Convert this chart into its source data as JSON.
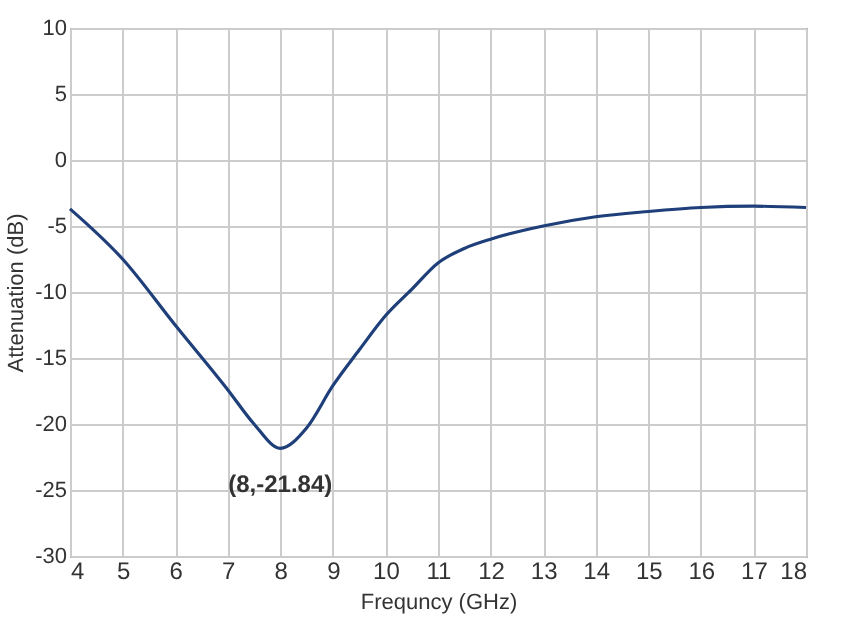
{
  "chart_data": {
    "type": "line",
    "xlabel": "Frequncy  (GHz)",
    "ylabel": "Attenuation  (dB)",
    "x": [
      4,
      5,
      6,
      7,
      7.5,
      8,
      8.5,
      9,
      9.5,
      10,
      10.5,
      11,
      11.5,
      12,
      13,
      14,
      15,
      16,
      17,
      18
    ],
    "series": [
      {
        "color": "#1f3f7a",
        "values": [
          -3.7,
          -7.5,
          -12.5,
          -17.4,
          -20,
          -21.84,
          -20.3,
          -17.1,
          -14.4,
          -11.8,
          -9.8,
          -7.8,
          -6.7,
          -6,
          -5,
          -4.3,
          -3.9,
          -3.6,
          -3.5,
          -3.6
        ]
      }
    ],
    "xlim": [
      4,
      18
    ],
    "xticks": [
      4,
      5,
      6,
      7,
      8,
      9,
      10,
      11,
      12,
      13,
      14,
      15,
      16,
      17,
      18
    ],
    "ylim": [
      -30,
      10
    ],
    "yticks": [
      -30,
      -25,
      -20,
      -15,
      -10,
      -5,
      0,
      5,
      10
    ],
    "grid": true,
    "marker": "none",
    "line_style": "solid",
    "annotations": [
      {
        "text": "(8,-21.84)",
        "x": 8,
        "y": -21.84
      }
    ]
  }
}
